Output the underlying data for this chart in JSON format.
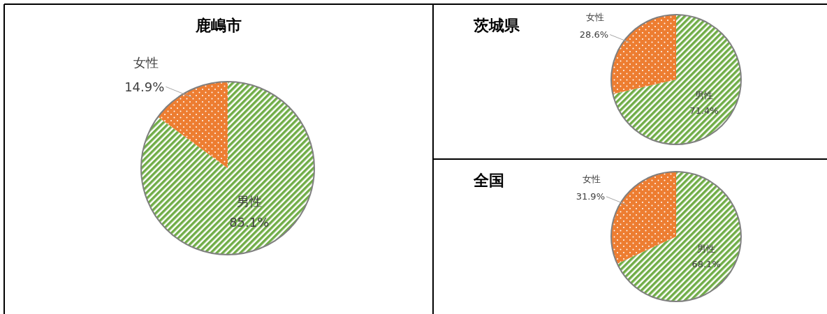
{
  "chart_data": [
    {
      "type": "pie",
      "title": "鹿嶋市",
      "categories": [
        "男性",
        "女性"
      ],
      "values": [
        85.1,
        14.9
      ],
      "value_labels": [
        "85.1%",
        "14.9%"
      ],
      "colors": [
        "#70ad47",
        "#ed7d31"
      ]
    },
    {
      "type": "pie",
      "title": "茨城県",
      "categories": [
        "男性",
        "女性"
      ],
      "values": [
        71.4,
        28.6
      ],
      "value_labels": [
        "71.4%",
        "28.6%"
      ],
      "colors": [
        "#70ad47",
        "#ed7d31"
      ]
    },
    {
      "type": "pie",
      "title": "全国",
      "categories": [
        "男性",
        "女性"
      ],
      "values": [
        68.1,
        31.9
      ],
      "value_labels": [
        "68.1%",
        "31.9%"
      ],
      "colors": [
        "#70ad47",
        "#ed7d31"
      ]
    }
  ]
}
